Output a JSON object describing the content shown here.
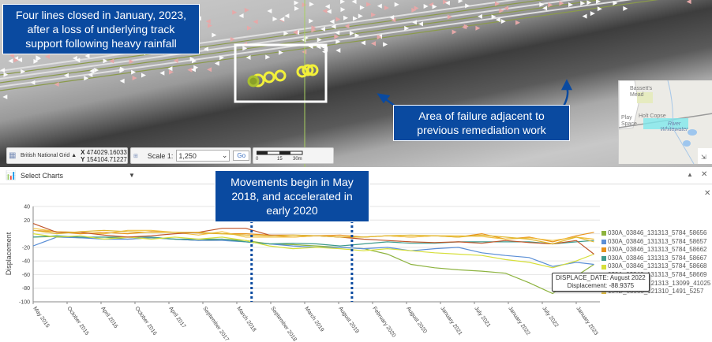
{
  "map": {
    "annotations": {
      "closure": "Four lines closed in January, 2023, after a loss of underlying track support following heavy rainfall",
      "failure_area": "Area of failure adjacent to previous remediation work",
      "movements": "Movements begin in May 2018, and accelerated in early 2020"
    },
    "toolbar": {
      "projection": "British National Grid",
      "x_label": "X",
      "x_value": "474029.16033",
      "y_label": "Y",
      "y_value": "154104.71227",
      "scale_label": "Scale 1:",
      "scale_value": "1,250",
      "go_label": "Go",
      "scalebar_ticks": [
        "0",
        "15",
        "30m"
      ]
    },
    "minimap": {
      "labels": [
        "Bassett's Mead",
        "Holt Copse",
        "Play Space",
        "River Whitewater"
      ]
    }
  },
  "chart_panel": {
    "select_label": "Select Charts",
    "icons": [
      "bar-chart-icon",
      "dropdown-arrow-icon",
      "collapse-icon",
      "close-icon"
    ]
  },
  "tooltip": {
    "date_line": "DISPLACE_DATE: August 2022",
    "value_line": "Displacement: -88.9375"
  },
  "chart_data": {
    "type": "line",
    "ylabel": "Displacement",
    "xlabel": "",
    "ylim": [
      -100,
      40
    ],
    "yticks": [
      40,
      20,
      -20,
      -40,
      -60,
      -80,
      -100
    ],
    "xlim": [
      "2015-05",
      "2023-05"
    ],
    "xtick_labels": [
      "May 2015",
      "October 2015",
      "April 2016",
      "October 2016",
      "April 2017",
      "September 2017",
      "March 2018",
      "September 2018",
      "March 2019",
      "August 2019",
      "February 2020",
      "August 2020",
      "January 2021",
      "July 2021",
      "January 2022",
      "July 2022",
      "January 2023"
    ],
    "grid": true,
    "legend_position": "right",
    "annotation_lines": [
      "2018-06",
      "2019-11"
    ],
    "x": [
      "2015-05",
      "2015-09",
      "2016-01",
      "2016-05",
      "2016-09",
      "2017-01",
      "2017-05",
      "2017-09",
      "2018-01",
      "2018-05",
      "2018-09",
      "2019-01",
      "2019-05",
      "2019-09",
      "2020-01",
      "2020-05",
      "2020-09",
      "2021-01",
      "2021-05",
      "2021-09",
      "2022-01",
      "2022-05",
      "2022-09",
      "2023-01",
      "2023-04"
    ],
    "series": [
      {
        "name": "030A_03846_131313_5784_58656",
        "color": "#8db33f",
        "values": [
          -5,
          -4,
          -6,
          -5,
          -8,
          -6,
          -8,
          -10,
          -8,
          -10,
          -15,
          -16,
          -18,
          -20,
          -22,
          -30,
          -45,
          -50,
          -53,
          -55,
          -58,
          -72,
          -88,
          -62,
          -45
        ]
      },
      {
        "name": "030A_03846_131313_5784_58657",
        "color": "#5b8fd6",
        "values": [
          -18,
          -5,
          -6,
          -8,
          -8,
          -6,
          -8,
          -10,
          -10,
          -12,
          -15,
          -18,
          -20,
          -20,
          -22,
          -20,
          -25,
          -22,
          -20,
          -28,
          -32,
          -35,
          -48,
          -42,
          -45
        ]
      },
      {
        "name": "030A_03846_131313_5784_58662",
        "color": "#e8921b",
        "values": [
          5,
          3,
          0,
          2,
          0,
          3,
          2,
          1,
          0,
          0,
          -2,
          -5,
          -3,
          -2,
          -5,
          -3,
          -5,
          -3,
          -5,
          0,
          -8,
          -5,
          -12,
          -3,
          2
        ]
      },
      {
        "name": "030A_03846_131313_5784_58667",
        "color": "#3e9a8c",
        "values": [
          -5,
          -3,
          -5,
          -5,
          -5,
          -5,
          -8,
          -8,
          -8,
          -12,
          -15,
          -14,
          -15,
          -18,
          -15,
          -12,
          -14,
          -14,
          -12,
          -12,
          -12,
          -12,
          -15,
          -12,
          -10
        ]
      },
      {
        "name": "030A_03846_131313_5784_58668",
        "color": "#d6df3a",
        "values": [
          0,
          -5,
          -3,
          -8,
          -5,
          -8,
          -5,
          -8,
          -5,
          -10,
          -18,
          -22,
          -20,
          -22,
          -25,
          -22,
          -25,
          -28,
          -30,
          -32,
          -38,
          -42,
          -50,
          -40,
          -30
        ]
      },
      {
        "name": "030A_03846_131313_5784_58669",
        "color": "#f0c040",
        "values": [
          8,
          3,
          2,
          0,
          5,
          5,
          2,
          -2,
          3,
          -5,
          -5,
          -5,
          -3,
          -5,
          -5,
          -3,
          -5,
          -3,
          -3,
          -4,
          -8,
          -6,
          -10,
          -5,
          -8
        ]
      },
      {
        "name": "081D_03826_121313_13099_41025",
        "color": "#c0562a",
        "values": [
          15,
          2,
          2,
          -2,
          -5,
          -3,
          0,
          2,
          8,
          8,
          -2,
          -2,
          -3,
          -5,
          -8,
          -10,
          -12,
          -13,
          -12,
          -14,
          -10,
          -13,
          -15,
          -10,
          -30
        ]
      },
      {
        "name": "154D_03960_121310_1491_5257",
        "color": "#e0b830",
        "values": [
          5,
          0,
          3,
          5,
          3,
          2,
          2,
          2,
          0,
          -2,
          -3,
          -2,
          -3,
          -5,
          -5,
          -3,
          -2,
          -3,
          -5,
          -2,
          -5,
          -8,
          -15,
          -5,
          -12
        ]
      }
    ]
  }
}
